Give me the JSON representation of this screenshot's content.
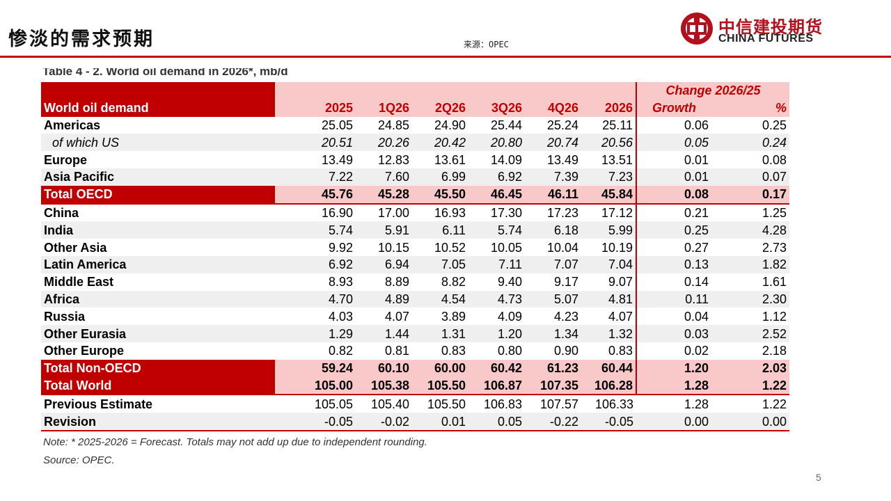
{
  "slide": {
    "title": "惨淡的需求预期",
    "source_top": "来源：OPEC",
    "page_number": "5"
  },
  "logo": {
    "cn": "中信建投期货",
    "en": "CHINA FUTURES",
    "brand_color": "#b3101c"
  },
  "table": {
    "caption_partial": "Table 4 - 2. World oil demand in 2026*, mb/d",
    "change_header": "Change 2026/25",
    "columns": [
      "World oil demand",
      "2025",
      "1Q26",
      "2Q26",
      "3Q26",
      "4Q26",
      "2026",
      "Growth",
      "%"
    ],
    "rows": [
      {
        "label": "Americas",
        "values": [
          "25.05",
          "24.85",
          "24.90",
          "25.44",
          "25.24",
          "25.11",
          "0.06",
          "0.25"
        ]
      },
      {
        "label": "of which US",
        "values": [
          "20.51",
          "20.26",
          "20.42",
          "20.80",
          "20.74",
          "20.56",
          "0.05",
          "0.24"
        ]
      },
      {
        "label": "Europe",
        "values": [
          "13.49",
          "12.83",
          "13.61",
          "14.09",
          "13.49",
          "13.51",
          "0.01",
          "0.08"
        ]
      },
      {
        "label": "Asia Pacific",
        "values": [
          "7.22",
          "7.60",
          "6.99",
          "6.92",
          "7.39",
          "7.23",
          "0.01",
          "0.07"
        ]
      },
      {
        "label": "Total OECD",
        "values": [
          "45.76",
          "45.28",
          "45.50",
          "46.45",
          "46.11",
          "45.84",
          "0.08",
          "0.17"
        ]
      },
      {
        "label": "China",
        "values": [
          "16.90",
          "17.00",
          "16.93",
          "17.30",
          "17.23",
          "17.12",
          "0.21",
          "1.25"
        ]
      },
      {
        "label": "India",
        "values": [
          "5.74",
          "5.91",
          "6.11",
          "5.74",
          "6.18",
          "5.99",
          "0.25",
          "4.28"
        ]
      },
      {
        "label": "Other Asia",
        "values": [
          "9.92",
          "10.15",
          "10.52",
          "10.05",
          "10.04",
          "10.19",
          "0.27",
          "2.73"
        ]
      },
      {
        "label": "Latin America",
        "values": [
          "6.92",
          "6.94",
          "7.05",
          "7.11",
          "7.07",
          "7.04",
          "0.13",
          "1.82"
        ]
      },
      {
        "label": "Middle East",
        "values": [
          "8.93",
          "8.89",
          "8.82",
          "9.40",
          "9.17",
          "9.07",
          "0.14",
          "1.61"
        ]
      },
      {
        "label": "Africa",
        "values": [
          "4.70",
          "4.89",
          "4.54",
          "4.73",
          "5.07",
          "4.81",
          "0.11",
          "2.30"
        ]
      },
      {
        "label": "Russia",
        "values": [
          "4.03",
          "4.07",
          "3.89",
          "4.09",
          "4.23",
          "4.07",
          "0.04",
          "1.12"
        ]
      },
      {
        "label": "Other Eurasia",
        "values": [
          "1.29",
          "1.44",
          "1.31",
          "1.20",
          "1.34",
          "1.32",
          "0.03",
          "2.52"
        ]
      },
      {
        "label": "Other Europe",
        "values": [
          "0.82",
          "0.81",
          "0.83",
          "0.80",
          "0.90",
          "0.83",
          "0.02",
          "2.18"
        ]
      },
      {
        "label": "Total Non-OECD",
        "values": [
          "59.24",
          "60.10",
          "60.00",
          "60.42",
          "61.23",
          "60.44",
          "1.20",
          "2.03"
        ]
      },
      {
        "label": "Total World",
        "values": [
          "105.00",
          "105.38",
          "105.50",
          "106.87",
          "107.35",
          "106.28",
          "1.28",
          "1.22"
        ]
      },
      {
        "label": "Previous Estimate",
        "values": [
          "105.05",
          "105.40",
          "105.50",
          "106.83",
          "107.57",
          "106.33",
          "1.28",
          "1.22"
        ]
      },
      {
        "label": "Revision",
        "values": [
          "-0.05",
          "-0.02",
          "0.01",
          "0.05",
          "-0.22",
          "-0.05",
          "0.00",
          "0.00"
        ]
      }
    ],
    "note": "Note: * 2025-2026 = Forecast. Totals may not add up due to independent rounding.",
    "source": "Source: OPEC."
  },
  "colors": {
    "accent_red": "#c00000",
    "header_pink": "#f9c9c9",
    "row_alt_gray": "#efefef"
  }
}
